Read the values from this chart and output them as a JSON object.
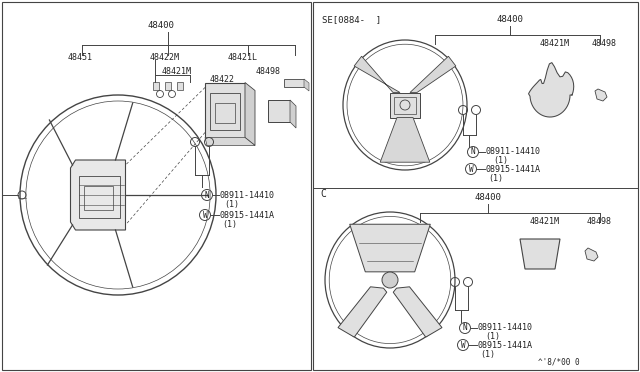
{
  "bg_color": "#ffffff",
  "line_color": "#444444",
  "text_color": "#222222",
  "part_numbers": {
    "main": "48400",
    "p48451": "48451",
    "p48422M": "48422M",
    "p48421L": "48421L",
    "p48421M": "48421M",
    "p48422": "48422",
    "p48498": "48498",
    "nut1": "08911-14410",
    "nut1_qty": "(1)",
    "washer1": "08915-1441A",
    "washer1_qty": "(1)"
  },
  "footer": "^'8/*00 0",
  "sub_label_se": "SE[0884-  ]",
  "sub_label_c": "C"
}
